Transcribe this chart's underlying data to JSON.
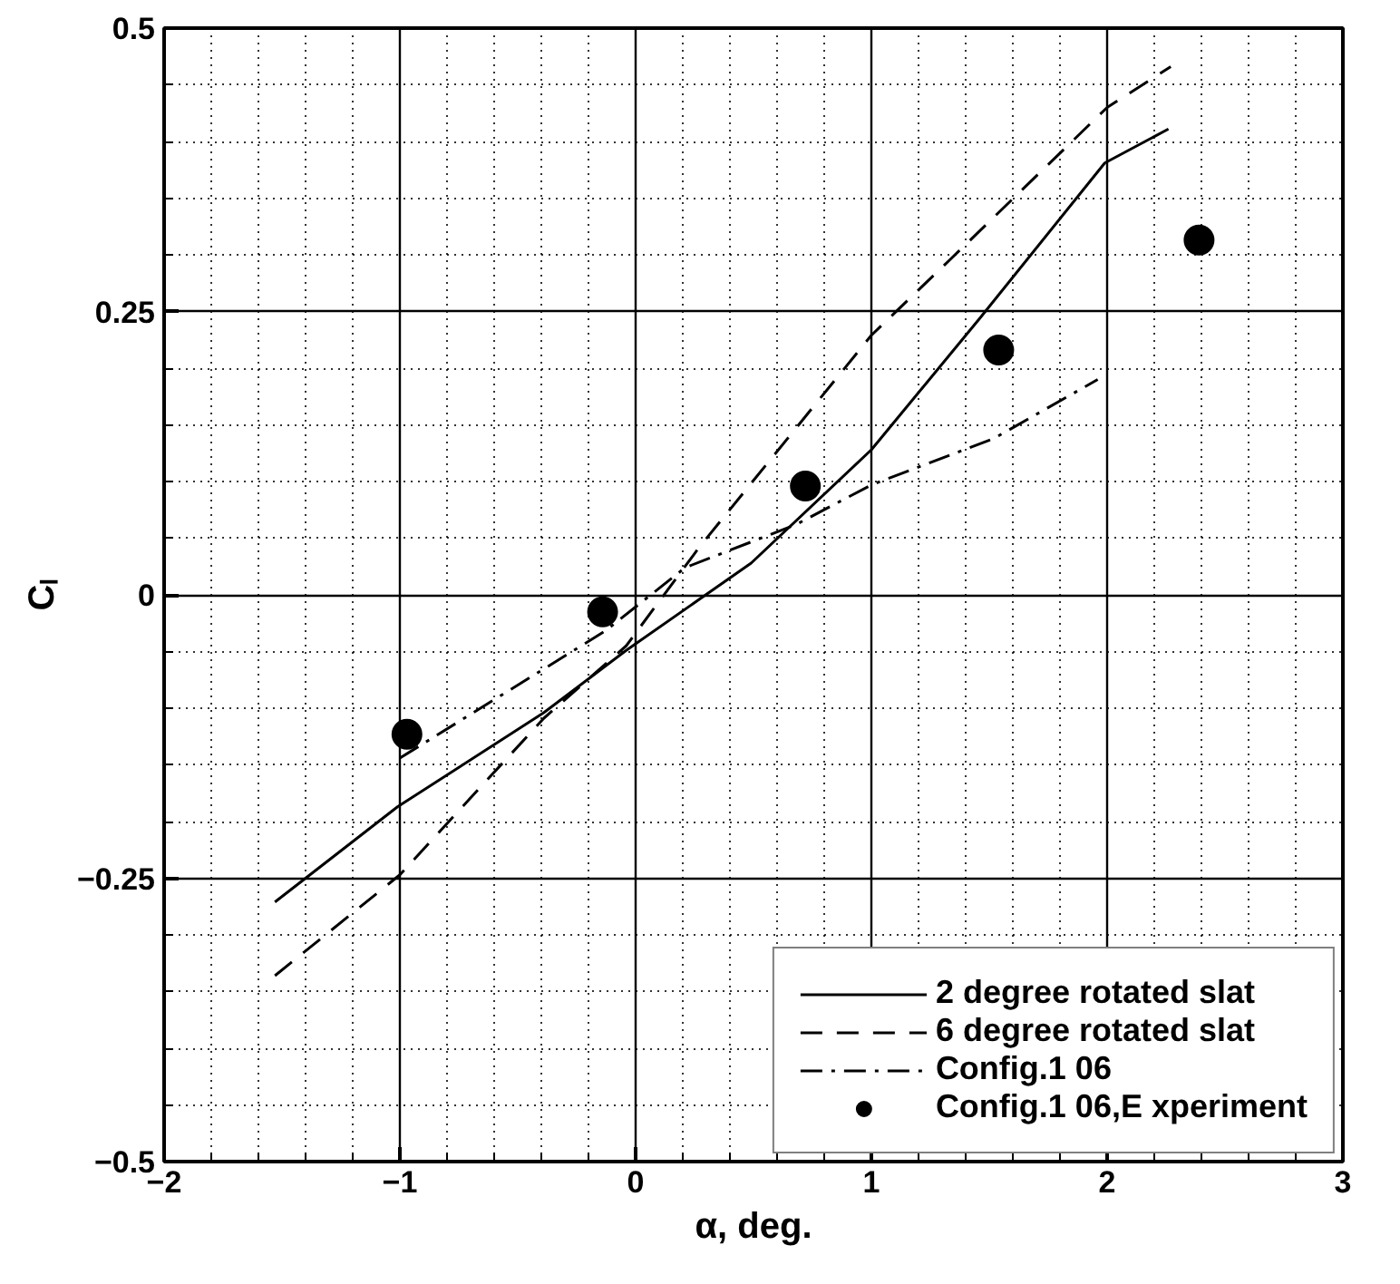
{
  "chart_data": {
    "type": "line",
    "xlabel": "α, deg.",
    "ylabel": "Cₗ",
    "xlim": [
      -2,
      3
    ],
    "ylim": [
      -0.5,
      0.5
    ],
    "xticks": [
      -2,
      -1,
      0,
      1,
      2,
      3
    ],
    "yticks": [
      -0.5,
      -0.25,
      0,
      0.25,
      0.5
    ],
    "grid": true,
    "legend": "bottom right",
    "series": [
      {
        "name": "2 degree rotated slat",
        "line_style": "solid",
        "color": "#000000",
        "x": [
          -1.53,
          -1.01,
          -0.39,
          -0.04,
          0.49,
          1.0,
          1.46,
          1.99,
          2.26
        ],
        "values": [
          -0.271,
          -0.187,
          -0.104,
          -0.049,
          0.028,
          0.128,
          0.244,
          0.381,
          0.411
        ]
      },
      {
        "name": "6 degree rotated slat",
        "line_style": "dashed",
        "color": "#000000",
        "x": [
          -1.53,
          -1.0,
          -0.39,
          -0.04,
          0.27,
          1.0,
          1.33,
          2.0,
          2.27
        ],
        "values": [
          -0.336,
          -0.247,
          -0.109,
          -0.045,
          0.042,
          0.229,
          0.295,
          0.43,
          0.466
        ]
      },
      {
        "name": "Config.1 06",
        "line_style": "dashdot",
        "color": "#000000",
        "x": [
          -1.0,
          -0.13,
          0.21,
          0.68,
          1.0,
          1.52,
          1.96
        ],
        "values": [
          -0.144,
          -0.032,
          0.024,
          0.062,
          0.097,
          0.138,
          0.19
        ]
      },
      {
        "name": "Config.1 06,E xperiment",
        "type": "scatter",
        "marker": "circle",
        "color": "#000000",
        "x": [
          -0.97,
          -0.14,
          0.72,
          1.54,
          2.39
        ],
        "values": [
          -0.123,
          -0.015,
          0.096,
          0.216,
          0.313
        ]
      }
    ]
  }
}
